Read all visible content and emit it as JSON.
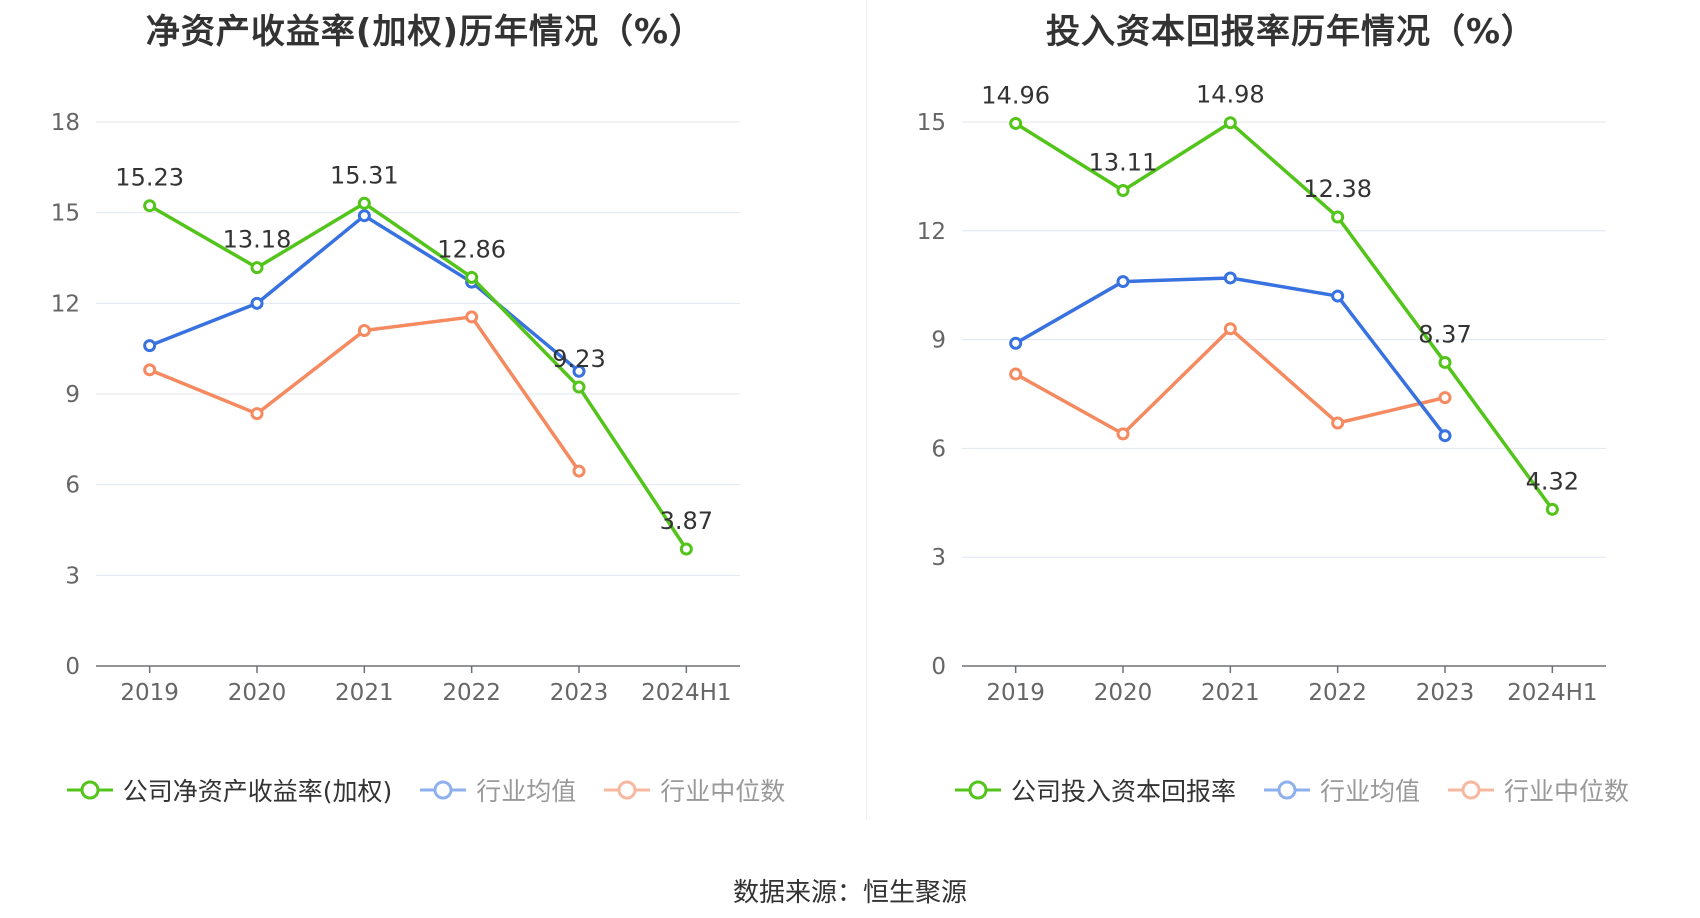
{
  "footer": {
    "source": "数据来源：恒生聚源"
  },
  "colors": {
    "company": "#52c41a",
    "avg": "#3871e0",
    "median": "#f5895f",
    "avg_legend": "#8fb0ee",
    "median_legend": "#f8b8a0"
  },
  "chart_data": [
    {
      "type": "line",
      "title": "净资产收益率(加权)历年情况（%）",
      "categories": [
        "2019",
        "2020",
        "2021",
        "2022",
        "2023",
        "2024H1"
      ],
      "yticks": [
        0,
        3,
        6,
        9,
        12,
        15,
        18
      ],
      "ylim": [
        0,
        18
      ],
      "grid": true,
      "legend_position": "bottom",
      "series": [
        {
          "key": "company",
          "name": "公司净资产收益率(加权)",
          "values": [
            15.23,
            13.18,
            15.31,
            12.86,
            9.23,
            3.87
          ],
          "labels": [
            "15.23",
            "13.18",
            "15.31",
            "12.86",
            "9.23",
            "3.87"
          ]
        },
        {
          "key": "avg",
          "name": "行业均值",
          "values": [
            10.6,
            12.0,
            14.9,
            12.7,
            9.75,
            null
          ]
        },
        {
          "key": "median",
          "name": "行业中位数",
          "values": [
            9.8,
            8.35,
            11.1,
            11.55,
            6.45,
            null
          ]
        }
      ]
    },
    {
      "type": "line",
      "title": "投入资本回报率历年情况（%）",
      "categories": [
        "2019",
        "2020",
        "2021",
        "2022",
        "2023",
        "2024H1"
      ],
      "yticks": [
        0,
        3,
        6,
        9,
        12,
        15
      ],
      "ylim": [
        0,
        15
      ],
      "grid": true,
      "legend_position": "bottom",
      "series": [
        {
          "key": "company",
          "name": "公司投入资本回报率",
          "values": [
            14.96,
            13.11,
            14.98,
            12.38,
            8.37,
            4.32
          ],
          "labels": [
            "14.96",
            "13.11",
            "14.98",
            "12.38",
            "8.37",
            "4.32"
          ]
        },
        {
          "key": "avg",
          "name": "行业均值",
          "values": [
            8.9,
            10.6,
            10.7,
            10.2,
            6.35,
            null
          ]
        },
        {
          "key": "median",
          "name": "行业中位数",
          "values": [
            8.05,
            6.4,
            9.3,
            6.7,
            7.4,
            null
          ]
        }
      ]
    }
  ]
}
